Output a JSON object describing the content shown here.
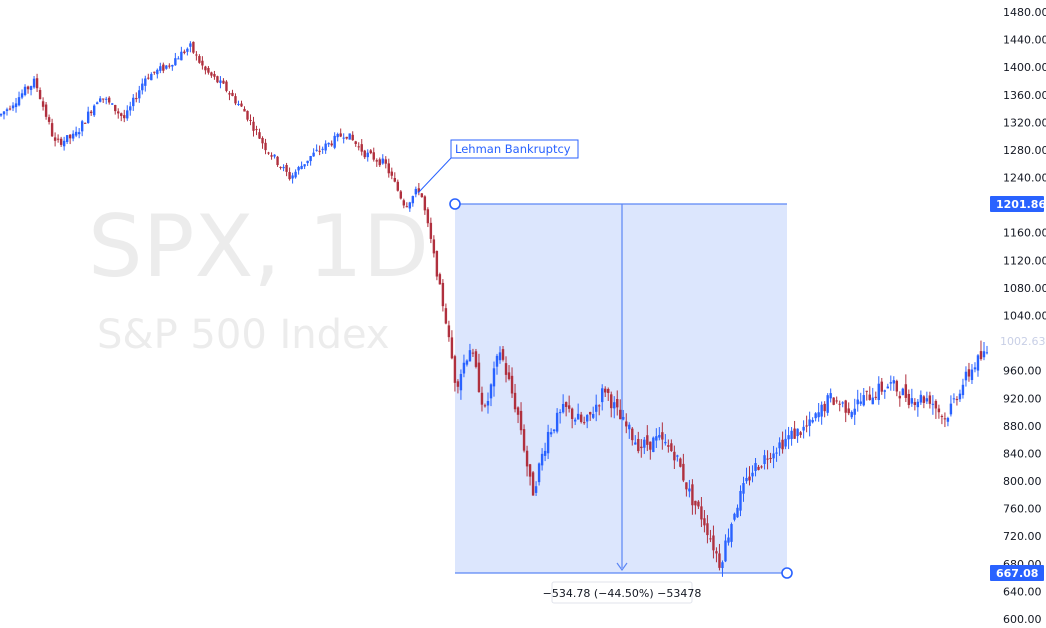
{
  "watermark": {
    "symbol_line": "SPX, 1D",
    "description": "S&P 500 Index"
  },
  "colors": {
    "up": "#2962ff",
    "down": "#b0303e",
    "measure_fill": "#dce6fd",
    "measure_line": "#5b86f5",
    "badge": "#2962ff",
    "axis_text": "#131722"
  },
  "chart_data": {
    "type": "candlestick",
    "symbol": "SPX",
    "interval": "1D",
    "title": "",
    "xlabel": "",
    "ylabel": "",
    "ylim": [
      600,
      1480
    ],
    "y_ticks": [
      "1480.00",
      "1440.00",
      "1400.00",
      "1360.00",
      "1320.00",
      "1280.00",
      "1240.00",
      "1160.00",
      "1120.00",
      "1080.00",
      "1040.00",
      "960.00",
      "920.00",
      "880.00",
      "840.00",
      "800.00",
      "760.00",
      "720.00",
      "680.00",
      "640.00",
      "600.00"
    ],
    "grid": false,
    "close_path": [
      [
        0,
        1330
      ],
      [
        35,
        1380
      ],
      [
        55,
        1290
      ],
      [
        75,
        1300
      ],
      [
        100,
        1360
      ],
      [
        125,
        1325
      ],
      [
        145,
        1385
      ],
      [
        165,
        1400
      ],
      [
        190,
        1430
      ],
      [
        205,
        1395
      ],
      [
        225,
        1370
      ],
      [
        245,
        1335
      ],
      [
        265,
        1285
      ],
      [
        290,
        1240
      ],
      [
        310,
        1270
      ],
      [
        330,
        1290
      ],
      [
        345,
        1305
      ],
      [
        365,
        1275
      ],
      [
        385,
        1260
      ],
      [
        405,
        1200
      ],
      [
        420,
        1225
      ],
      [
        432,
        1140
      ],
      [
        445,
        1040
      ],
      [
        456,
        940
      ],
      [
        470,
        995
      ],
      [
        485,
        900
      ],
      [
        500,
        990
      ],
      [
        520,
        885
      ],
      [
        532,
        780
      ],
      [
        548,
        870
      ],
      [
        565,
        905
      ],
      [
        585,
        880
      ],
      [
        605,
        935
      ],
      [
        620,
        890
      ],
      [
        640,
        850
      ],
      [
        658,
        860
      ],
      [
        675,
        840
      ],
      [
        690,
        780
      ],
      [
        705,
        740
      ],
      [
        720,
        680
      ],
      [
        735,
        760
      ],
      [
        752,
        815
      ],
      [
        772,
        845
      ],
      [
        790,
        865
      ],
      [
        810,
        880
      ],
      [
        830,
        920
      ],
      [
        850,
        905
      ],
      [
        870,
        925
      ],
      [
        890,
        940
      ],
      [
        910,
        920
      ],
      [
        930,
        920
      ],
      [
        945,
        890
      ],
      [
        960,
        935
      ],
      [
        975,
        970
      ],
      [
        990,
        990
      ]
    ],
    "candles_count": 330,
    "annotations": [
      {
        "type": "callout",
        "text": "Lehman Bankruptcy"
      }
    ],
    "price_badges": [
      {
        "label": "1201.86",
        "value": 1201.86
      },
      {
        "label": "667.08",
        "value": 667.08
      }
    ],
    "last_price": {
      "label": "1002.63",
      "value": 1002.63
    },
    "measure": {
      "from": 1201.86,
      "to": 667.08,
      "label": "−534.78 (−44.50%) −53478"
    }
  }
}
